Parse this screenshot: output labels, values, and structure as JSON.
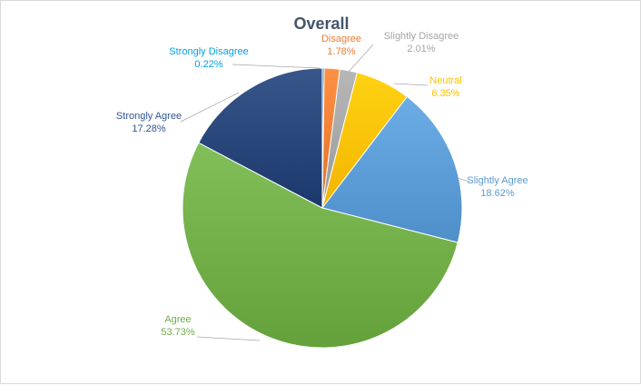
{
  "chart_data": {
    "type": "pie",
    "title": "Overall",
    "start_angle_deg": 0,
    "direction": "clockwise",
    "slices": [
      {
        "label": "Strongly Disagree",
        "value": 0.22,
        "display": "0.22%",
        "color": "#2e75b6",
        "label_color": "#00a2e8"
      },
      {
        "label": "Disagree",
        "value": 1.78,
        "display": "1.78%",
        "color": "#ed7d31",
        "label_color": "#ed7d31"
      },
      {
        "label": "Slightly Disagree",
        "value": 2.01,
        "display": "2.01%",
        "color": "#a5a5a5",
        "label_color": "#a5a5a5"
      },
      {
        "label": "Neutral",
        "value": 6.35,
        "display": "6.35%",
        "color": "#ffc000",
        "label_color": "#ffc000"
      },
      {
        "label": "Slightly Agree",
        "value": 18.62,
        "display": "18.62%",
        "color": "#5b9bd5",
        "label_color": "#5b9bd5"
      },
      {
        "label": "Agree",
        "value": 53.73,
        "display": "53.73%",
        "color": "#70ad47",
        "label_color": "#70ad47"
      },
      {
        "label": "Strongly Agree",
        "value": 17.28,
        "display": "17.28%",
        "color": "#264478",
        "label_color": "#2f5597"
      }
    ]
  }
}
